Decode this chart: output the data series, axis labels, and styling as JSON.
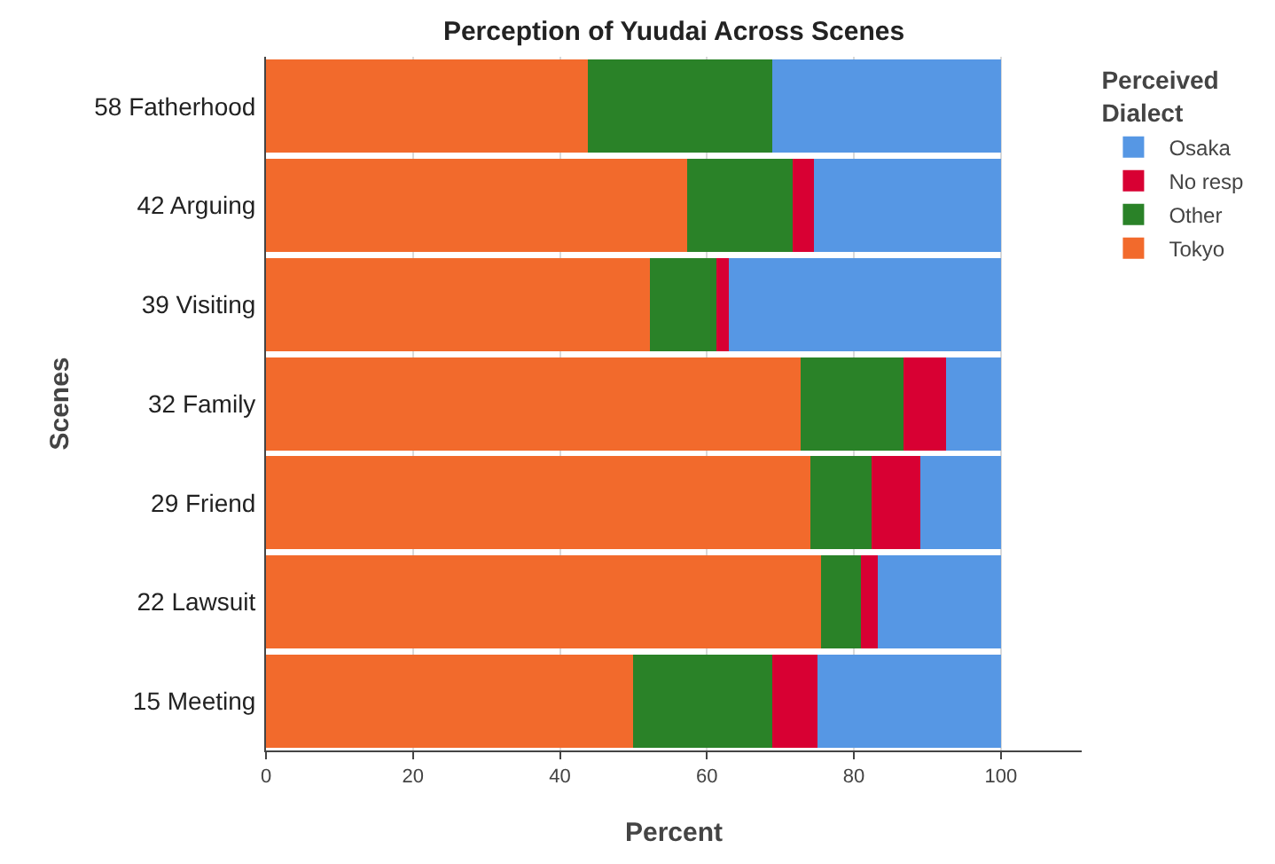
{
  "chart_data": {
    "type": "bar",
    "orientation": "horizontal",
    "stacked": true,
    "title": "Perception of Yuudai Across Scenes",
    "xlabel": "Percent",
    "ylabel": "Scenes",
    "legend_title": "Perceived Dialect",
    "legend": "right",
    "grid": "x",
    "categories": [
      "58 Fatherhood",
      "42 Arguing",
      "39 Visiting",
      "32 Family",
      "29 Friend",
      "22 Lawsuit",
      "15 Meeting"
    ],
    "xlim": [
      0,
      111
    ],
    "xticks": [
      0,
      20,
      40,
      60,
      80,
      100
    ],
    "series": [
      {
        "name": "Tokyo",
        "color": "#f26a2c",
        "values": [
          43.8,
          57.3,
          52.2,
          72.8,
          74.1,
          75.5,
          50.0
        ]
      },
      {
        "name": "Other",
        "color": "#2a8228",
        "values": [
          25.1,
          14.4,
          9.1,
          14.0,
          8.3,
          5.4,
          18.9
        ]
      },
      {
        "name": "No resp",
        "color": "#d80033",
        "values": [
          0,
          2.9,
          1.7,
          5.7,
          6.7,
          2.4,
          6.1
        ]
      },
      {
        "name": "Osaka",
        "color": "#5697e4",
        "values": [
          31.1,
          25.4,
          37.0,
          7.5,
          10.9,
          16.7,
          25.0
        ]
      }
    ]
  }
}
